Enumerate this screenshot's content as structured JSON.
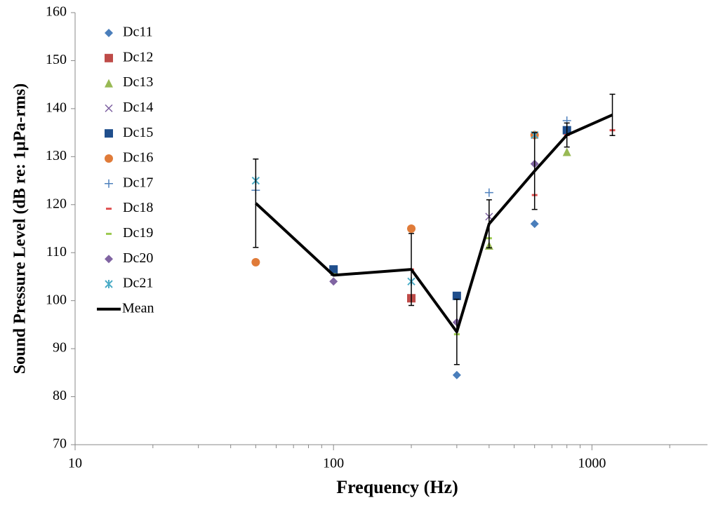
{
  "chart_data": {
    "type": "scatter",
    "x_label": "Frequency (Hz)",
    "y_label": "Sound Pressure Level (dB re: 1µPa-rms)",
    "x_scale": "log",
    "xlim": [
      10,
      2800
    ],
    "xticks": [
      10,
      100,
      1000
    ],
    "xminorticks": [
      20,
      30,
      40,
      50,
      60,
      70,
      80,
      90,
      200,
      300,
      400,
      500,
      600,
      700,
      800,
      900,
      2000
    ],
    "ylim": [
      70,
      160
    ],
    "yticks": [
      70,
      80,
      90,
      100,
      110,
      120,
      130,
      140,
      150,
      160
    ],
    "grid": false,
    "legend": "upper-left",
    "x": [
      50,
      100,
      200,
      300,
      400,
      600,
      800,
      1200
    ],
    "series": [
      {
        "name": "Dc11",
        "color": "#4a7ebb",
        "marker": "diamond",
        "values": [
          null,
          null,
          null,
          84.5,
          null,
          116,
          null,
          null
        ]
      },
      {
        "name": "Dc12",
        "color": "#be4b48",
        "marker": "square",
        "values": [
          null,
          null,
          100.5,
          null,
          null,
          null,
          null,
          null
        ]
      },
      {
        "name": "Dc13",
        "color": "#98b954",
        "marker": "triangle",
        "values": [
          null,
          null,
          null,
          null,
          111.5,
          null,
          131,
          null
        ]
      },
      {
        "name": "Dc14",
        "color": "#7d60a0",
        "marker": "x",
        "values": [
          null,
          null,
          null,
          null,
          117.5,
          null,
          null,
          null
        ]
      },
      {
        "name": "Dc15",
        "color": "#1f4e8c",
        "marker": "square",
        "values": [
          null,
          106.5,
          null,
          101,
          null,
          null,
          135.5,
          null
        ]
      },
      {
        "name": "Dc16",
        "color": "#e07b39",
        "marker": "circle",
        "values": [
          108,
          null,
          115,
          null,
          null,
          134.5,
          null,
          null
        ]
      },
      {
        "name": "Dc17",
        "color": "#4f81bd",
        "marker": "plus",
        "values": [
          123,
          null,
          null,
          null,
          122.5,
          null,
          137.5,
          null
        ]
      },
      {
        "name": "Dc18",
        "color": "#e05050",
        "marker": "dash",
        "values": [
          null,
          null,
          106.5,
          null,
          null,
          122,
          134.5,
          135.5
        ]
      },
      {
        "name": "Dc19",
        "color": "#9bc94f",
        "marker": "dash",
        "values": [
          null,
          105.5,
          null,
          93,
          113,
          null,
          null,
          null
        ]
      },
      {
        "name": "Dc20",
        "color": "#8064a2",
        "marker": "diamond",
        "values": [
          null,
          104,
          null,
          95.5,
          null,
          128.5,
          null,
          null
        ]
      },
      {
        "name": "Dc21",
        "color": "#4bacc6",
        "marker": "star",
        "values": [
          125,
          null,
          104,
          null,
          null,
          134.5,
          null,
          null
        ]
      },
      {
        "name": "Mean",
        "color": "#000000",
        "marker": "line",
        "values": [
          120.3,
          105.3,
          106.5,
          93.5,
          116,
          127,
          134.5,
          138.7
        ],
        "errors": [
          9.2,
          0,
          7.5,
          6.8,
          5,
          8,
          2.5,
          4.3
        ]
      }
    ]
  }
}
